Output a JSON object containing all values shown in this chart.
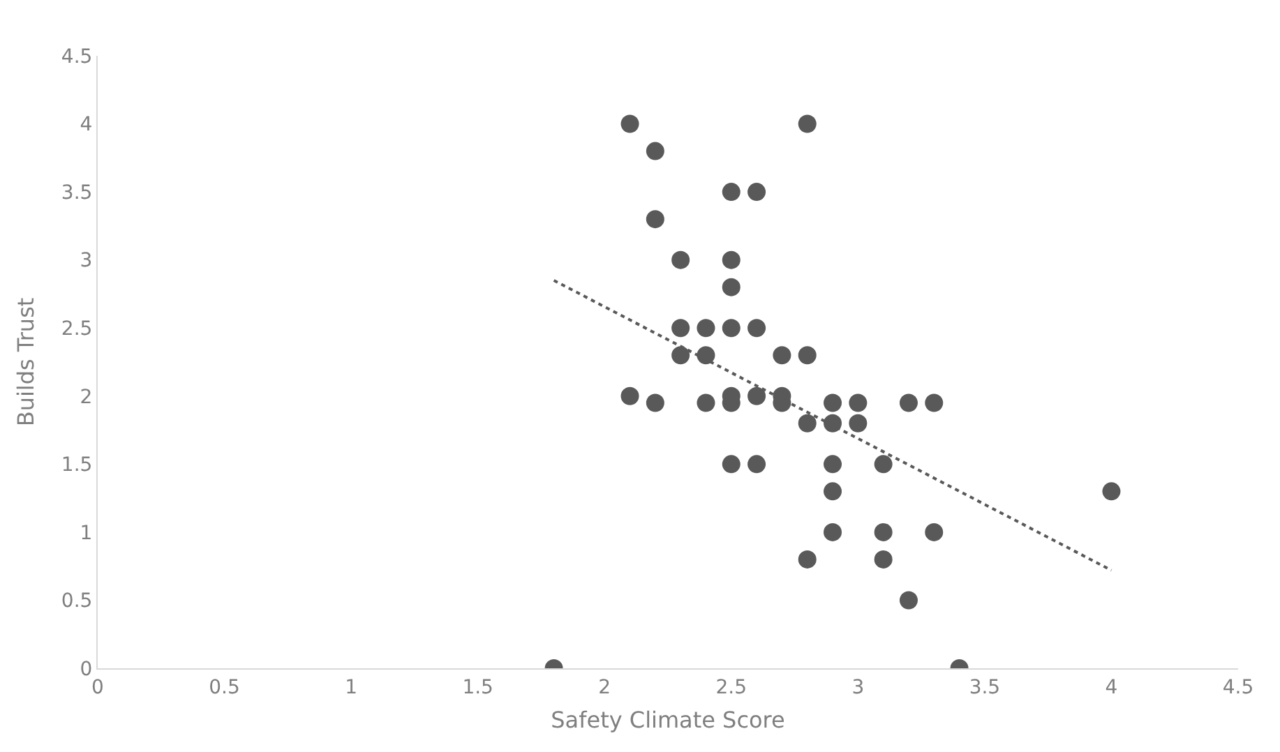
{
  "chart_data": {
    "type": "scatter",
    "xlabel": "Safety Climate Score",
    "ylabel": "Builds Trust",
    "xlim": [
      0,
      4.5
    ],
    "xticks": [
      0,
      0.5,
      1,
      1.5,
      2,
      2.5,
      3,
      3.5,
      4,
      4.5
    ],
    "ylim": [
      0,
      4.5
    ],
    "yticks": [
      0,
      0.5,
      1,
      1.5,
      2,
      2.5,
      3,
      3.5,
      4,
      4.5
    ],
    "grid": false,
    "marker": "circle",
    "series": [
      {
        "color": "#595959",
        "x": [
          2.1,
          2.8,
          2.2,
          2.5,
          2.6,
          2.2,
          2.3,
          2.5,
          2.5,
          2.3,
          2.4,
          2.5,
          2.6,
          2.3,
          2.4,
          2.7,
          2.8,
          2.1,
          2.2,
          2.4,
          2.5,
          2.5,
          2.6,
          2.7,
          2.7,
          2.9,
          3.0,
          3.2,
          3.3,
          2.8,
          2.9,
          3.0,
          2.5,
          2.6,
          2.9,
          3.1,
          2.9,
          4.0,
          2.9,
          3.1,
          3.3,
          2.8,
          3.1,
          3.2,
          1.8,
          3.4
        ],
        "values": [
          4,
          4,
          3.8,
          3.5,
          3.5,
          3.3,
          3,
          3,
          2.8,
          2.5,
          2.5,
          2.5,
          2.5,
          2.3,
          2.3,
          2.3,
          2.3,
          2,
          1.95,
          1.95,
          1.95,
          2,
          2,
          2,
          1.95,
          1.95,
          1.95,
          1.95,
          1.95,
          1.8,
          1.8,
          1.8,
          1.5,
          1.5,
          1.5,
          1.5,
          1.3,
          1.3,
          1,
          1,
          1,
          0.8,
          0.8,
          0.5,
          0,
          0
        ]
      },
      {
        "type": "line",
        "color": "#595959",
        "line_style": "dotted",
        "marker": "none",
        "x": [
          1.8,
          4.0
        ],
        "values": [
          2.85,
          0.72
        ]
      }
    ]
  }
}
